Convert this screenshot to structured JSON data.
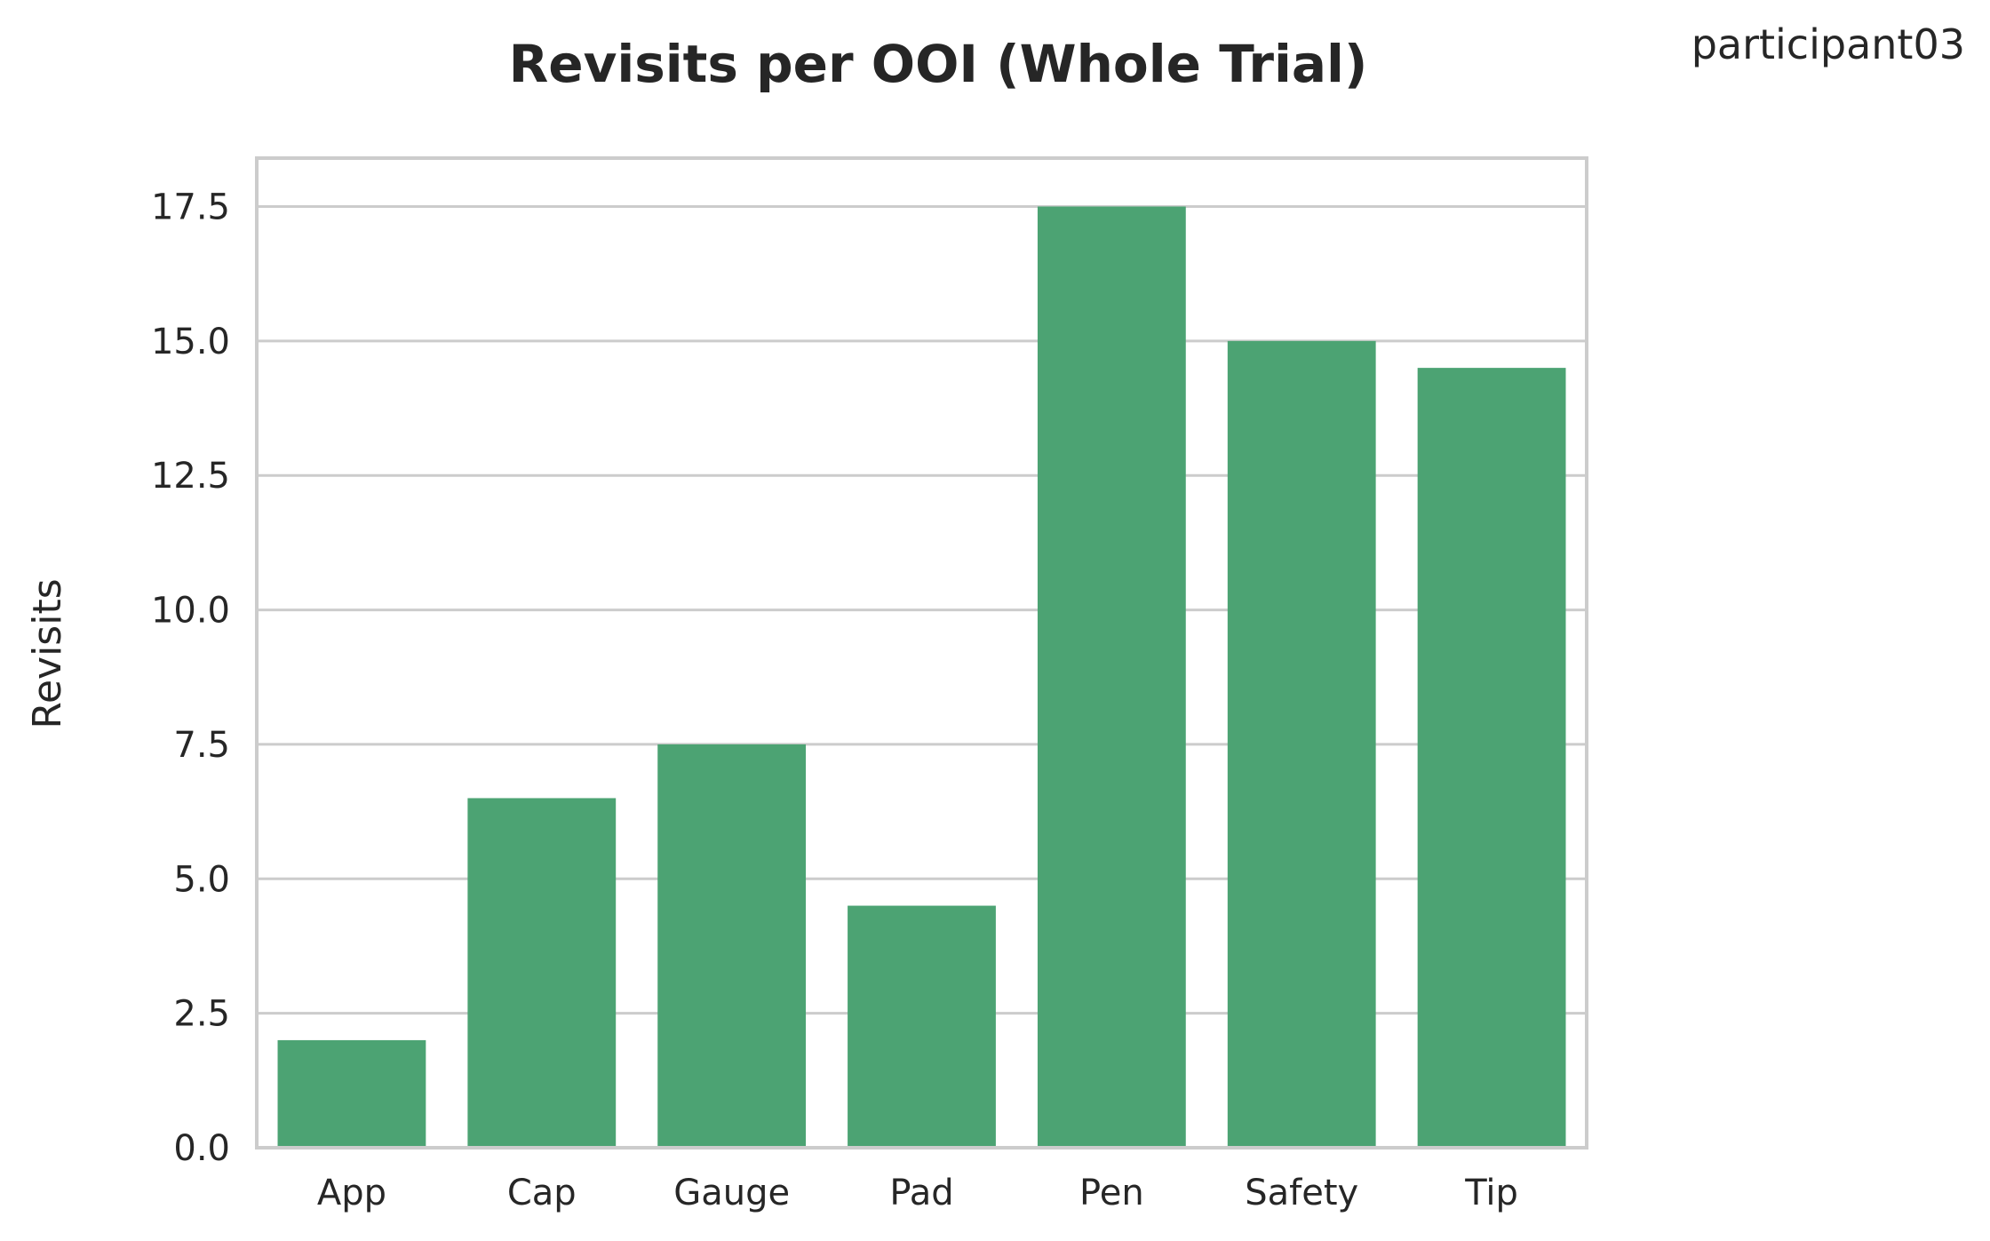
{
  "chart_data": {
    "type": "bar",
    "title": "Revisits per OOI (Whole Trial)",
    "corner_label": "participant03",
    "xlabel": "",
    "ylabel": "Revisits",
    "categories": [
      "App",
      "Cap",
      "Gauge",
      "Pad",
      "Pen",
      "Safety",
      "Tip"
    ],
    "values": [
      2.0,
      6.5,
      7.5,
      4.5,
      17.5,
      15.0,
      14.5
    ],
    "ylim": [
      0,
      18.4
    ],
    "yticks": [
      0.0,
      2.5,
      5.0,
      7.5,
      10.0,
      12.5,
      15.0,
      17.5
    ],
    "ytick_labels": [
      "0.0",
      "2.5",
      "5.0",
      "7.5",
      "10.0",
      "12.5",
      "15.0",
      "17.5"
    ],
    "grid": "horizontal",
    "bar_color": "#4ca373",
    "grid_color": "#cccccc",
    "frame_color": "#cccccc"
  }
}
